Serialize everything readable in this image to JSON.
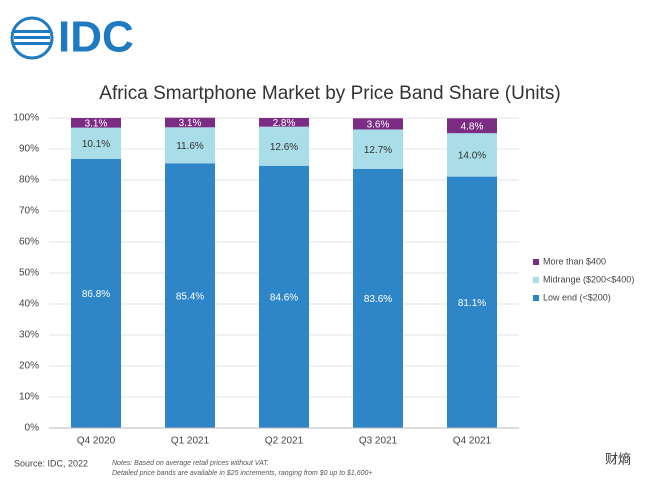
{
  "logo": "IDC",
  "chart_data": {
    "type": "stacked_bar",
    "title": "Africa Smartphone Market by Price Band Share (Units)",
    "categories": [
      "Q4 2020",
      "Q1 2021",
      "Q2 2021",
      "Q3 2021",
      "Q4 2021"
    ],
    "series": [
      {
        "name": "Low end (<$200)",
        "color": "#2e86c8",
        "values": [
          86.8,
          85.4,
          84.6,
          83.6,
          81.1
        ],
        "value_labels": [
          "86.8%",
          "85.4%",
          "84.6%",
          "83.6%",
          "81.1%"
        ],
        "label_color": "#ffffff"
      },
      {
        "name": "Midrange ($200<$400)",
        "color": "#a9dde7",
        "values": [
          10.1,
          11.6,
          12.6,
          12.7,
          14.0
        ],
        "value_labels": [
          "10.1%",
          "11.6%",
          "12.6%",
          "12.7%",
          "14.0%"
        ],
        "label_color": "#333333"
      },
      {
        "name": "More than $400",
        "color": "#7b2d84",
        "values": [
          3.1,
          3.1,
          2.8,
          3.6,
          4.8
        ],
        "value_labels": [
          "3.1%",
          "3.1%",
          "2.8%",
          "3.6%",
          "4.8%"
        ],
        "label_color": "#ffffff"
      }
    ],
    "ylim": [
      0,
      100
    ],
    "yticks": [
      {
        "value": 0,
        "label": "0%"
      },
      {
        "value": 10,
        "label": "10%"
      },
      {
        "value": 20,
        "label": "20%"
      },
      {
        "value": 30,
        "label": "30%"
      },
      {
        "value": 40,
        "label": "40%"
      },
      {
        "value": 50,
        "label": "50%"
      },
      {
        "value": 60,
        "label": "60%"
      },
      {
        "value": 70,
        "label": "70%"
      },
      {
        "value": 80,
        "label": "80%"
      },
      {
        "value": 90,
        "label": "90%"
      },
      {
        "value": 100,
        "label": "100%"
      }
    ],
    "grid": true
  },
  "source": "Source: IDC, 2022",
  "notes": [
    "Notes:  Based on average retail prices without VAT.",
    "Detailed price bands are available in $25 increments, ranging from $0 up to $1,600+"
  ],
  "watermark": "财熵"
}
